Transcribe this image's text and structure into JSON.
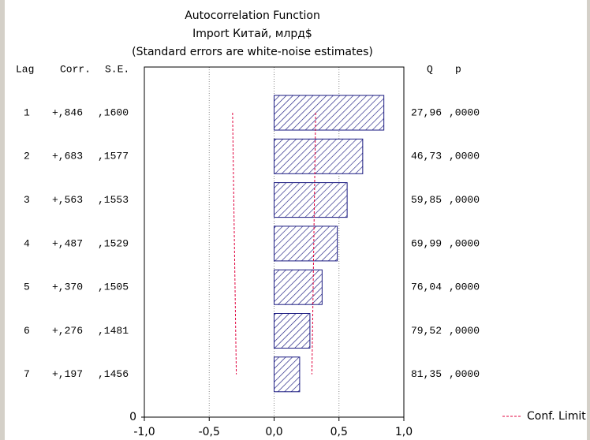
{
  "chart_data": {
    "type": "acf",
    "title": "Autocorrelation Function",
    "subtitle": "Import Китай, млрд$",
    "note": "(Standard errors are white-noise estimates)",
    "column_headers": {
      "lag": "Lag",
      "corr": "Corr.",
      "se": "S.E.",
      "q": "Q",
      "p": "p"
    },
    "categories": [
      "1",
      "2",
      "3",
      "4",
      "5",
      "6",
      "7"
    ],
    "values": [
      0.846,
      0.683,
      0.563,
      0.487,
      0.37,
      0.276,
      0.197
    ],
    "value_labels": [
      "+,846",
      "+,683",
      "+,563",
      "+,487",
      "+,370",
      "+,276",
      "+,197"
    ],
    "se": [
      0.16,
      0.1577,
      0.1553,
      0.1529,
      0.1505,
      0.1481,
      0.1456
    ],
    "se_labels": [
      ",1600",
      ",1577",
      ",1553",
      ",1529",
      ",1505",
      ",1481",
      ",1456"
    ],
    "q": [
      27.96,
      46.73,
      59.85,
      69.99,
      76.04,
      79.52,
      81.35
    ],
    "q_labels": [
      "27,96",
      "46,73",
      "59,85",
      "69,99",
      "76,04",
      "79,52",
      "81,35"
    ],
    "p": [
      0,
      0,
      0,
      0,
      0,
      0,
      0
    ],
    "p_labels": [
      ",0000",
      ",0000",
      ",0000",
      ",0000",
      ",0000",
      ",0000",
      ",0000"
    ],
    "color": "#1a1a80",
    "conf_limit": {
      "name": "Conf. Limit",
      "color": "#e0003c",
      "lower": [
        -0.32,
        -0.3154,
        -0.3106,
        -0.3058,
        -0.301,
        -0.2962,
        -0.2912
      ],
      "upper": [
        0.32,
        0.3154,
        0.3106,
        0.3058,
        0.301,
        0.2962,
        0.2912
      ]
    },
    "xlim": [
      -1,
      1
    ],
    "xticks": [
      {
        "value": -1,
        "label": "-1,0"
      },
      {
        "value": -0.5,
        "label": "-0,5"
      },
      {
        "value": 0,
        "label": "0,0"
      },
      {
        "value": 0.5,
        "label": "0,5"
      },
      {
        "value": 1,
        "label": "1,0"
      }
    ],
    "yticks": [
      0
    ],
    "grid": true
  }
}
